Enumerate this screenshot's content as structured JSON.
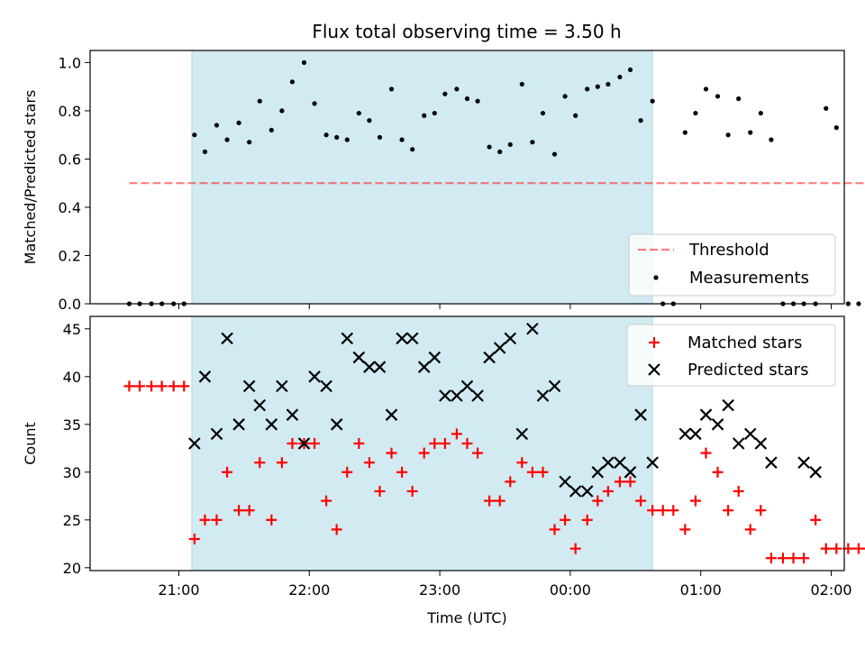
{
  "title": "Flux total observing time = 3.50 h",
  "colors": {
    "shade": "#add8e6",
    "threshold": "#ff0000",
    "measurement": "#000000",
    "matched": "#ff0000",
    "predicted": "#000000"
  },
  "chart_data": [
    {
      "type": "scatter",
      "name": "ratio-panel",
      "ylabel": "Matched/Predicted stars",
      "xlabel": "",
      "ylim": [
        0,
        1.05
      ],
      "yticks": [
        0.0,
        0.2,
        0.4,
        0.6,
        0.8,
        1.0
      ],
      "ytick_labels": [
        "0.0",
        "0.2",
        "0.4",
        "0.6",
        "0.8",
        "1.0"
      ],
      "xlim": [
        -0.68,
        5.1
      ],
      "shaded_span": [
        0.1,
        3.63
      ],
      "legend_position": "lower-right",
      "threshold": {
        "name": "Threshold",
        "y": 0.5,
        "x": [
          -0.38,
          5.3
        ]
      },
      "measurements": {
        "name": "Measurements",
        "x": [
          -0.38,
          -0.3,
          -0.21,
          -0.13,
          -0.04,
          0.04,
          0.12,
          0.2,
          0.29,
          0.37,
          0.46,
          0.54,
          0.62,
          0.71,
          0.79,
          0.87,
          0.96,
          1.04,
          1.13,
          1.21,
          1.29,
          1.38,
          1.46,
          1.54,
          1.63,
          1.71,
          1.79,
          1.88,
          1.96,
          2.04,
          2.13,
          2.21,
          2.29,
          2.38,
          2.46,
          2.54,
          2.63,
          2.71,
          2.79,
          2.88,
          2.96,
          3.04,
          3.13,
          3.21,
          3.29,
          3.38,
          3.46,
          3.54,
          3.63,
          3.71,
          3.79,
          3.88,
          3.96,
          4.04,
          4.13,
          4.21,
          4.29,
          4.38,
          4.46,
          4.54,
          4.63,
          4.71,
          4.79,
          4.88,
          4.96,
          5.04,
          5.13,
          5.21,
          5.29
        ],
        "y": [
          0,
          0,
          0,
          0,
          0,
          0,
          0.7,
          0.63,
          0.74,
          0.68,
          0.75,
          0.67,
          0.84,
          0.72,
          0.8,
          0.92,
          1.0,
          0.83,
          0.7,
          0.69,
          0.68,
          0.79,
          0.76,
          0.69,
          0.89,
          0.68,
          0.64,
          0.78,
          0.79,
          0.87,
          0.89,
          0.85,
          0.84,
          0.65,
          0.63,
          0.66,
          0.91,
          0.67,
          0.79,
          0.62,
          0.86,
          0.78,
          0.89,
          0.9,
          0.91,
          0.94,
          0.97,
          0.76,
          0.84,
          0,
          0,
          0.71,
          0.79,
          0.89,
          0.86,
          0.7,
          0.85,
          0.71,
          0.79,
          0.68,
          0,
          0,
          0,
          0,
          0.81,
          0.73,
          0,
          0,
          0
        ]
      },
      "xticks": [
        0,
        1,
        2,
        3,
        4,
        5
      ]
    },
    {
      "type": "scatter",
      "name": "count-panel",
      "xlabel": "Time (UTC)",
      "ylabel": "Count",
      "ylim": [
        19.7,
        46.3
      ],
      "yticks": [
        20,
        25,
        30,
        35,
        40,
        45
      ],
      "ytick_labels": [
        "20",
        "25",
        "30",
        "35",
        "40",
        "45"
      ],
      "xlim": [
        -0.68,
        5.1
      ],
      "xticks": [
        0,
        1,
        2,
        3,
        4,
        5
      ],
      "xtick_labels": [
        "21:00",
        "22:00",
        "23:00",
        "00:00",
        "01:00",
        "02:00"
      ],
      "shaded_span": [
        0.1,
        3.63
      ],
      "legend_position": "top-right",
      "series": [
        {
          "name": "Matched stars",
          "marker": "plus",
          "x": [
            -0.38,
            -0.3,
            -0.21,
            -0.13,
            -0.04,
            0.04,
            0.12,
            0.2,
            0.29,
            0.37,
            0.46,
            0.54,
            0.62,
            0.71,
            0.79,
            0.87,
            0.96,
            1.04,
            1.13,
            1.21,
            1.29,
            1.38,
            1.46,
            1.54,
            1.63,
            1.71,
            1.79,
            1.88,
            1.96,
            2.04,
            2.13,
            2.21,
            2.29,
            2.38,
            2.46,
            2.54,
            2.63,
            2.71,
            2.79,
            2.88,
            2.96,
            3.04,
            3.13,
            3.21,
            3.29,
            3.38,
            3.46,
            3.54,
            3.63,
            3.71,
            3.79,
            3.88,
            3.96,
            4.04,
            4.13,
            4.21,
            4.29,
            4.38,
            4.46,
            4.54,
            4.63,
            4.71,
            4.79,
            4.88,
            4.96,
            5.04,
            5.13,
            5.21,
            5.29
          ],
          "y": [
            39,
            39,
            39,
            39,
            39,
            39,
            23,
            25,
            25,
            30,
            26,
            26,
            31,
            25,
            31,
            33,
            33,
            33,
            27,
            24,
            30,
            33,
            31,
            28,
            32,
            30,
            28,
            32,
            33,
            33,
            34,
            33,
            32,
            27,
            27,
            29,
            31,
            30,
            30,
            24,
            25,
            22,
            25,
            27,
            28,
            29,
            29,
            27,
            26,
            26,
            26,
            24,
            27,
            32,
            30,
            26,
            28,
            24,
            26,
            21,
            21,
            21,
            21,
            25,
            22,
            22,
            22,
            22,
            22
          ]
        },
        {
          "name": "Predicted stars",
          "marker": "x",
          "x": [
            0.12,
            0.2,
            0.29,
            0.37,
            0.46,
            0.54,
            0.62,
            0.71,
            0.79,
            0.87,
            0.96,
            1.04,
            1.13,
            1.21,
            1.29,
            1.38,
            1.46,
            1.54,
            1.63,
            1.71,
            1.79,
            1.88,
            1.96,
            2.04,
            2.13,
            2.21,
            2.29,
            2.38,
            2.46,
            2.54,
            2.63,
            2.71,
            2.79,
            2.88,
            2.96,
            3.04,
            3.13,
            3.21,
            3.29,
            3.38,
            3.46,
            3.54,
            3.63,
            3.71,
            3.79,
            3.88,
            3.96,
            4.04,
            4.13,
            4.21,
            4.29,
            4.38,
            4.46,
            4.54,
            4.63,
            4.79,
            4.88
          ],
          "y": [
            33,
            40,
            34,
            44,
            35,
            39,
            37,
            35,
            39,
            36,
            33,
            40,
            39,
            35,
            44,
            42,
            41,
            41,
            36,
            44,
            44,
            41,
            42,
            38,
            38,
            39,
            38,
            42,
            43,
            44,
            34,
            45,
            38,
            39,
            29,
            28,
            28,
            30,
            31,
            31,
            30,
            36,
            31,
            null,
            null,
            34,
            34,
            36,
            35,
            37,
            33,
            34,
            33,
            31,
            null,
            31,
            30
          ]
        }
      ]
    }
  ],
  "legend_top": [
    "Threshold",
    "Measurements"
  ],
  "legend_bottom": [
    "Matched stars",
    "Predicted stars"
  ]
}
